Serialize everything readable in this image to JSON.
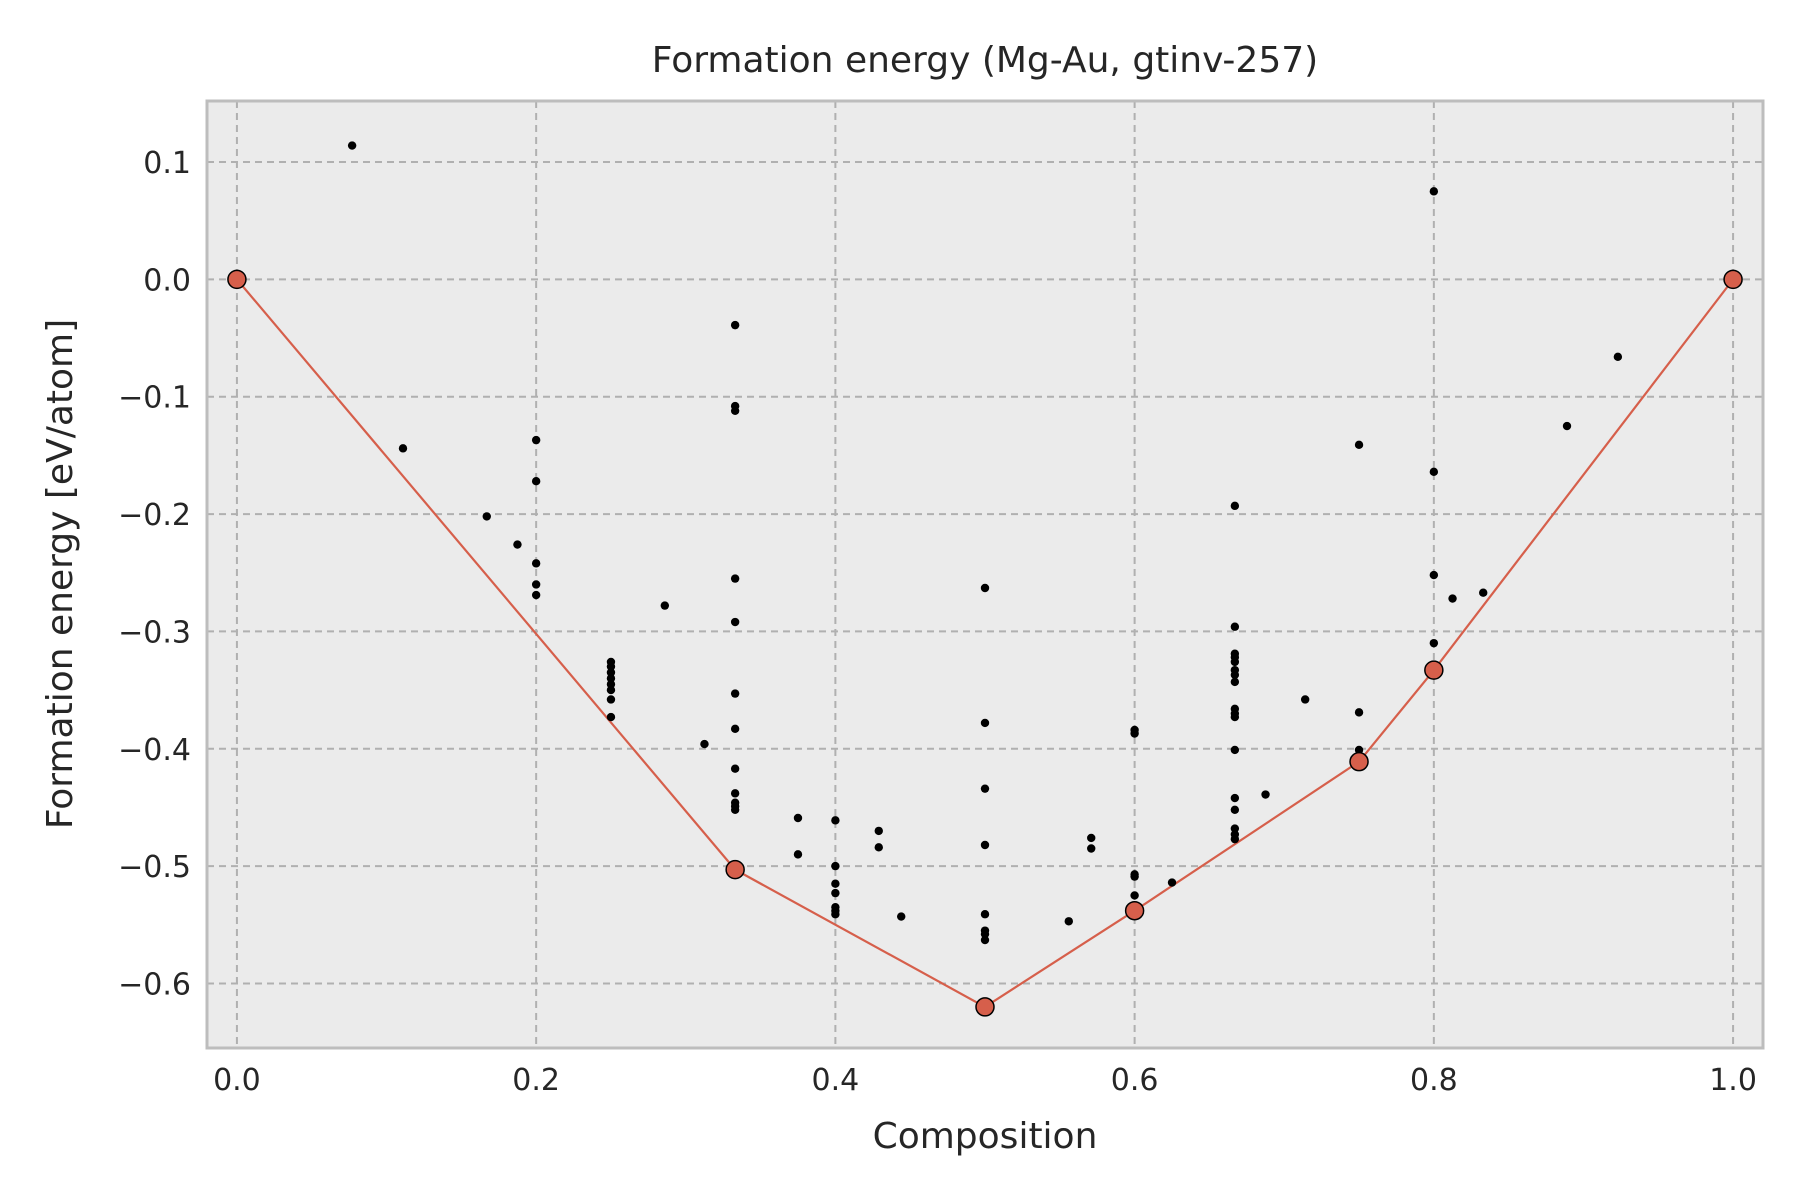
{
  "chart_data": {
    "type": "scatter",
    "title": "Formation energy (Mg-Au, gtinv-257)",
    "xlabel": "Composition",
    "ylabel": "Formation energy [eV/atom]",
    "xlim": [
      -0.02,
      1.02
    ],
    "ylim": [
      -0.655,
      0.152
    ],
    "xticks": [
      0.0,
      0.2,
      0.4,
      0.6,
      0.8,
      1.0
    ],
    "xtick_labels": [
      "0.0",
      "0.2",
      "0.4",
      "0.6",
      "0.8",
      "1.0"
    ],
    "yticks": [
      0.1,
      0.0,
      -0.1,
      -0.2,
      -0.3,
      -0.4,
      -0.5,
      -0.6
    ],
    "ytick_labels": [
      "0.1",
      "0.0",
      "−0.1",
      "−0.2",
      "−0.3",
      "−0.4",
      "−0.5",
      "−0.6"
    ],
    "grid": true,
    "colors": {
      "background": "#ebebeb",
      "hull": "#d65f4b",
      "points": "#000000",
      "frame": "#bdbdbd"
    },
    "series": [
      {
        "kind": "points",
        "x": [
          0.077,
          0.111,
          0.167,
          0.1875,
          0.2,
          0.2,
          0.2,
          0.2,
          0.2,
          0.25,
          0.25,
          0.25,
          0.25,
          0.25,
          0.25,
          0.25,
          0.25,
          0.286,
          0.3125,
          0.333,
          0.333,
          0.333,
          0.333,
          0.333,
          0.333,
          0.333,
          0.333,
          0.333,
          0.333,
          0.333,
          0.333,
          0.375,
          0.375,
          0.4,
          0.4,
          0.4,
          0.4,
          0.4,
          0.4,
          0.4,
          0.429,
          0.429,
          0.444,
          0.5,
          0.5,
          0.5,
          0.5,
          0.5,
          0.5,
          0.5,
          0.5,
          0.556,
          0.571,
          0.571,
          0.6,
          0.6,
          0.6,
          0.6,
          0.6,
          0.625,
          0.667,
          0.667,
          0.667,
          0.667,
          0.667,
          0.667,
          0.667,
          0.667,
          0.667,
          0.667,
          0.667,
          0.667,
          0.667,
          0.667,
          0.667,
          0.667,
          0.667,
          0.6875,
          0.714,
          0.75,
          0.75,
          0.75,
          0.8,
          0.8,
          0.8,
          0.8,
          0.8125,
          0.833,
          0.889,
          0.923
        ],
        "y": [
          0.114,
          -0.144,
          -0.202,
          -0.226,
          -0.137,
          -0.172,
          -0.242,
          -0.26,
          -0.269,
          -0.326,
          -0.33,
          -0.335,
          -0.34,
          -0.345,
          -0.35,
          -0.358,
          -0.373,
          -0.278,
          -0.396,
          -0.039,
          -0.108,
          -0.112,
          -0.255,
          -0.292,
          -0.353,
          -0.383,
          -0.417,
          -0.438,
          -0.446,
          -0.449,
          -0.452,
          -0.459,
          -0.49,
          -0.461,
          -0.5,
          -0.515,
          -0.523,
          -0.535,
          -0.538,
          -0.541,
          -0.47,
          -0.484,
          -0.543,
          -0.263,
          -0.378,
          -0.434,
          -0.482,
          -0.541,
          -0.555,
          -0.558,
          -0.563,
          -0.547,
          -0.476,
          -0.485,
          -0.384,
          -0.387,
          -0.507,
          -0.509,
          -0.525,
          -0.514,
          -0.193,
          -0.296,
          -0.319,
          -0.322,
          -0.326,
          -0.333,
          -0.337,
          -0.343,
          -0.366,
          -0.37,
          -0.373,
          -0.401,
          -0.442,
          -0.452,
          -0.468,
          -0.473,
          -0.477,
          -0.439,
          -0.358,
          -0.141,
          -0.369,
          -0.401,
          0.075,
          -0.164,
          -0.252,
          -0.31,
          -0.272,
          -0.267,
          -0.125,
          -0.066
        ]
      },
      {
        "kind": "hull",
        "x": [
          0.0,
          0.333,
          0.5,
          0.6,
          0.75,
          0.8,
          1.0
        ],
        "y": [
          0.0,
          -0.503,
          -0.62,
          -0.538,
          -0.411,
          -0.333,
          0.0
        ]
      }
    ]
  }
}
